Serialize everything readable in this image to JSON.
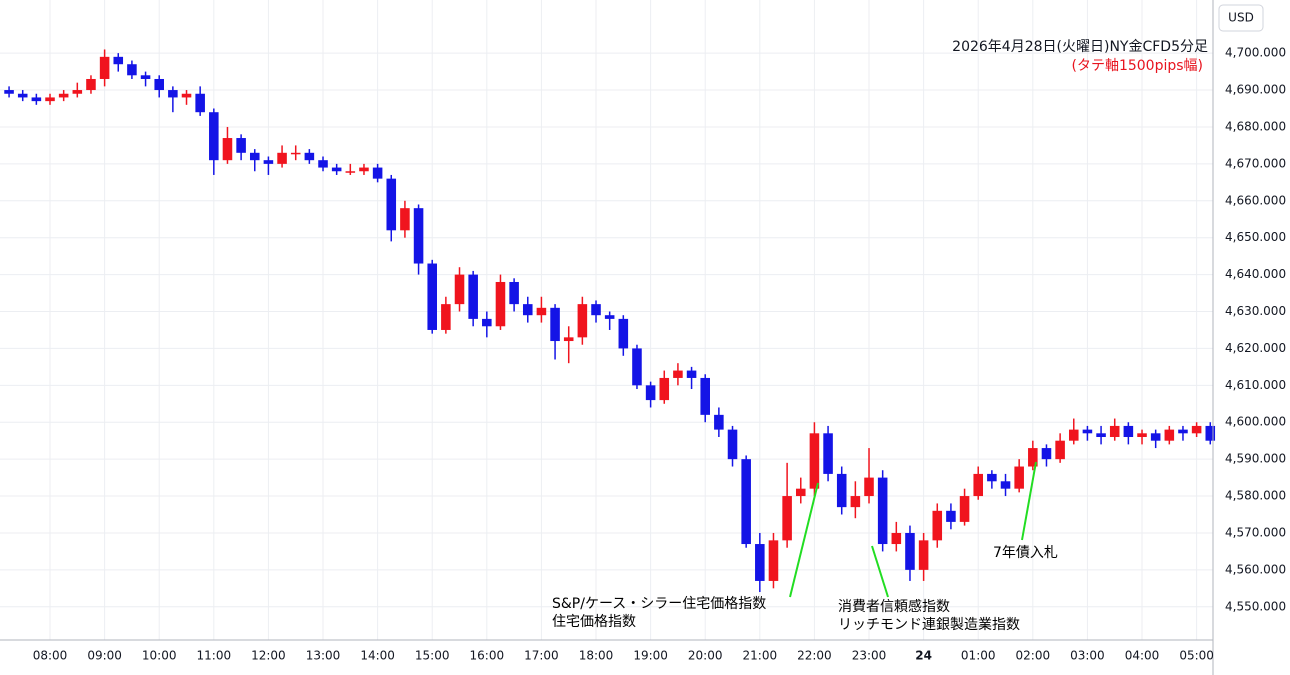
{
  "chart_data": {
    "type": "candlestick",
    "title": "2026年4月28日(火曜日)NY金CFD5分足",
    "subtitle": "(タテ軸1500pips幅)",
    "currency": "USD",
    "up_color": "#f0141e",
    "down_color": "#1414e6",
    "grid": true,
    "annotations": [
      "S&P/ケース・シラー住宅価格指数",
      "住宅価格指数",
      "消費者信頼感指数",
      "リッチモンド連銀製造業指数",
      "7年債入札"
    ],
    "xlim": [
      7.084,
      29.3
    ],
    "xticks": [
      {
        "value": 8,
        "label": "08:00"
      },
      {
        "value": 9,
        "label": "09:00"
      },
      {
        "value": 10,
        "label": "10:00"
      },
      {
        "value": 11,
        "label": "11:00"
      },
      {
        "value": 12,
        "label": "12:00"
      },
      {
        "value": 13,
        "label": "13:00"
      },
      {
        "value": 14,
        "label": "14:00"
      },
      {
        "value": 15,
        "label": "15:00"
      },
      {
        "value": 16,
        "label": "16:00"
      },
      {
        "value": 17,
        "label": "17:00"
      },
      {
        "value": 18,
        "label": "18:00"
      },
      {
        "value": 19,
        "label": "19:00"
      },
      {
        "value": 20,
        "label": "20:00"
      },
      {
        "value": 21,
        "label": "21:00"
      },
      {
        "value": 22,
        "label": "22:00"
      },
      {
        "value": 23,
        "label": "23:00"
      },
      24,
      {
        "value": 25,
        "label": "01:00"
      },
      {
        "value": 26,
        "label": "02:00"
      },
      {
        "value": 27,
        "label": "03:00"
      },
      {
        "value": 28,
        "label": "04:00"
      },
      {
        "value": 29,
        "label": "05:00"
      }
    ],
    "ylim": [
      4541,
      4714.4
    ],
    "yticks": [
      {
        "value": 4550,
        "label": "4,550.000"
      },
      {
        "value": 4560,
        "label": "4,560.000"
      },
      {
        "value": 4570,
        "label": "4,570.000"
      },
      {
        "value": 4580,
        "label": "4,580.000"
      },
      {
        "value": 4590,
        "label": "4,590.000"
      },
      {
        "value": 4600,
        "label": "4,600.000"
      },
      {
        "value": 4610,
        "label": "4,610.000"
      },
      {
        "value": 4620,
        "label": "4,620.000"
      },
      {
        "value": 4630,
        "label": "4,630.000"
      },
      {
        "value": 4640,
        "label": "4,640.000"
      },
      {
        "value": 4650,
        "label": "4,650.000"
      },
      {
        "value": 4660,
        "label": "4,660.000"
      },
      {
        "value": 4670,
        "label": "4,670.000"
      },
      {
        "value": 4680,
        "label": "4,680.000"
      },
      {
        "value": 4690,
        "label": "4,690.000"
      },
      {
        "value": 4700,
        "label": "4,700.000"
      }
    ],
    "x": [
      7.25,
      7.5,
      7.75,
      8,
      8.25,
      8.5,
      8.75,
      9,
      9.25,
      9.5,
      9.75,
      10,
      10.25,
      10.5,
      10.75,
      11,
      11.25,
      11.5,
      11.75,
      12,
      12.25,
      12.5,
      12.75,
      13,
      13.25,
      13.5,
      13.75,
      14,
      14.25,
      14.5,
      14.75,
      15,
      15.25,
      15.5,
      15.75,
      16,
      16.25,
      16.5,
      16.75,
      17,
      17.25,
      17.5,
      17.75,
      18,
      18.25,
      18.5,
      18.75,
      19,
      19.25,
      19.5,
      19.75,
      20,
      20.25,
      20.5,
      20.75,
      21,
      21.25,
      21.5,
      21.75,
      22,
      22.25,
      22.5,
      22.75,
      23,
      23.25,
      23.5,
      23.75,
      24,
      24.25,
      24.5,
      24.75,
      25,
      25.25,
      25.5,
      25.75,
      26,
      26.25,
      26.5,
      26.75,
      27,
      27.25,
      27.5,
      27.75,
      28,
      28.25,
      28.5,
      28.75,
      29,
      29.25
    ],
    "open": [
      4690,
      4689,
      4688,
      4687,
      4688,
      4689,
      4690,
      4693,
      4699,
      4697,
      4694,
      4693,
      4690,
      4688,
      4689,
      4684,
      4671,
      4677,
      4673,
      4671,
      4670,
      4673,
      4673,
      4671,
      4669,
      4668,
      4668,
      4669,
      4666,
      4652,
      4658,
      4643,
      4625,
      4632,
      4640,
      4628,
      4626,
      4638,
      4632,
      4629,
      4631,
      4622,
      4623,
      4632,
      4629,
      4628,
      4620,
      4610,
      4606,
      4612,
      4614,
      4612,
      4602,
      4598,
      4590,
      4567,
      4557,
      4568,
      4580,
      4582,
      4597,
      4586,
      4577,
      4580,
      4585,
      4567,
      4570,
      4560,
      4568,
      4576,
      4573,
      4580,
      4586,
      4584,
      4582,
      4588,
      4593,
      4590,
      4595,
      4598,
      4597,
      4596,
      4599,
      4596,
      4597,
      4595,
      4598,
      4597,
      4599
    ],
    "high": [
      4691,
      4690,
      4689,
      4689,
      4690,
      4692,
      4694,
      4701,
      4700,
      4698,
      4695,
      4694,
      4691,
      4690,
      4691,
      4685,
      4680,
      4678,
      4674,
      4672,
      4675,
      4675,
      4674,
      4672,
      4670,
      4670,
      4670,
      4670,
      4667,
      4660,
      4659,
      4644,
      4634,
      4642,
      4641,
      4630,
      4640,
      4639,
      4634,
      4634,
      4632,
      4626,
      4634,
      4633,
      4630,
      4629,
      4621,
      4611,
      4614,
      4616,
      4615,
      4613,
      4604,
      4599,
      4591,
      4570,
      4570,
      4589,
      4585,
      4600,
      4599,
      4588,
      4584,
      4593,
      4587,
      4573,
      4572,
      4570,
      4578,
      4578,
      4582,
      4588,
      4587,
      4586,
      4590,
      4595,
      4594,
      4597,
      4601,
      4599,
      4599,
      4601,
      4600,
      4598,
      4598,
      4599,
      4599,
      4600,
      4600
    ],
    "low": [
      4688,
      4687,
      4686,
      4686,
      4687,
      4688,
      4689,
      4691,
      4695,
      4693,
      4691,
      4688,
      4684,
      4686,
      4683,
      4667,
      4670,
      4671,
      4668,
      4667,
      4669,
      4671,
      4670,
      4668,
      4667,
      4667,
      4667,
      4665,
      4649,
      4650,
      4640,
      4624,
      4624,
      4630,
      4626,
      4623,
      4625,
      4630,
      4627,
      4627,
      4617,
      4616,
      4621,
      4627,
      4625,
      4618,
      4609,
      4604,
      4605,
      4610,
      4609,
      4600,
      4596,
      4588,
      4566,
      4554,
      4555,
      4566,
      4578,
      4580,
      4584,
      4575,
      4574,
      4578,
      4565,
      4565,
      4557,
      4557,
      4566,
      4571,
      4572,
      4579,
      4582,
      4580,
      4581,
      4587,
      4588,
      4589,
      4594,
      4595,
      4594,
      4595,
      4594,
      4594,
      4593,
      4594,
      4595,
      4596,
      4594
    ],
    "close": [
      4689,
      4688,
      4687,
      4688,
      4689,
      4690,
      4693,
      4699,
      4697,
      4694,
      4693,
      4690,
      4688,
      4689,
      4684,
      4671,
      4677,
      4673,
      4671,
      4670,
      4673,
      4673,
      4671,
      4669,
      4668,
      4668,
      4669,
      4666,
      4652,
      4658,
      4643,
      4625,
      4632,
      4640,
      4628,
      4626,
      4638,
      4632,
      4629,
      4631,
      4622,
      4623,
      4632,
      4629,
      4628,
      4620,
      4610,
      4606,
      4612,
      4614,
      4612,
      4602,
      4598,
      4590,
      4567,
      4557,
      4568,
      4580,
      4582,
      4597,
      4586,
      4577,
      4580,
      4585,
      4567,
      4570,
      4560,
      4568,
      4576,
      4573,
      4580,
      4586,
      4584,
      4582,
      4588,
      4593,
      4590,
      4595,
      4598,
      4597,
      4596,
      4599,
      4596,
      4597,
      4595,
      4598,
      4597,
      4599,
      4595
    ]
  }
}
